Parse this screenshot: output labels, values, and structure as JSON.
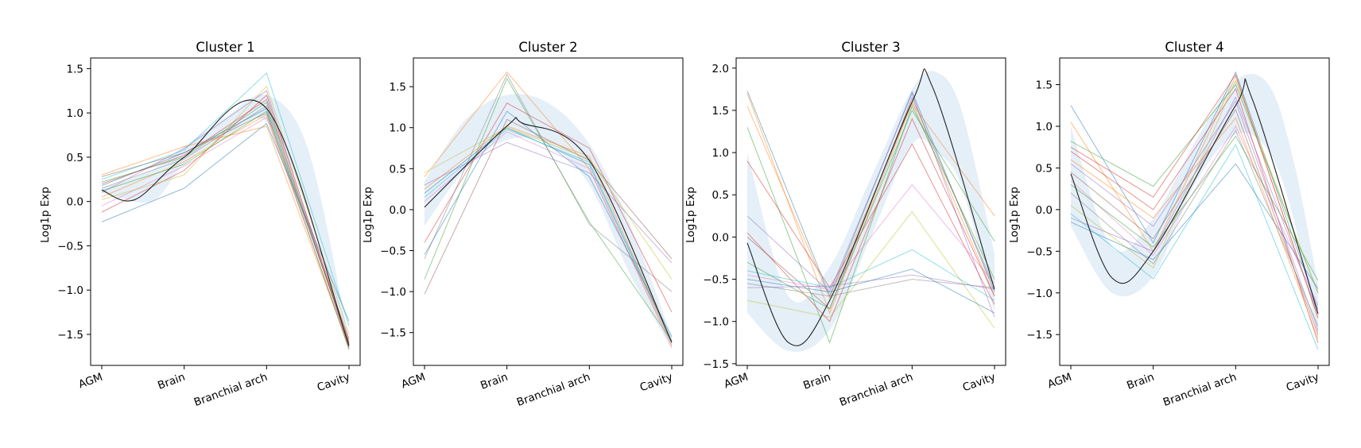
{
  "chart_data": [
    {
      "type": "line",
      "title": "Cluster 1",
      "ylabel": "Log1p Exp",
      "categories": [
        "AGM",
        "Brain",
        "Branchial arch",
        "Cavity"
      ],
      "ylim": [
        -1.85,
        1.62
      ],
      "yticks": [
        -1.5,
        -1.0,
        -0.5,
        0.0,
        0.5,
        1.0,
        1.5
      ],
      "ytick_labels": [
        "−1.5",
        "−1.0",
        "−0.5",
        "0.0",
        "0.5",
        "1.0",
        "1.5"
      ],
      "fit": [
        [
          0.0,
          0.13
        ],
        [
          0.4,
          0.02
        ],
        [
          1.0,
          0.5
        ],
        [
          2.0,
          1.05
        ],
        [
          3.0,
          -1.63
        ]
      ],
      "band": {
        "x": [
          0.0,
          0.6,
          1.0,
          1.5,
          2.0,
          2.5,
          3.0
        ],
        "upper": [
          0.15,
          0.35,
          0.62,
          0.95,
          1.2,
          0.6,
          -1.55
        ],
        "lower": [
          0.1,
          0.0,
          0.42,
          0.72,
          0.9,
          -0.1,
          -1.7
        ]
      },
      "series": [
        {
          "values": [
            0.18,
            0.55,
            1.05,
            -1.6
          ]
        },
        {
          "values": [
            0.05,
            0.45,
            0.98,
            -1.66
          ]
        },
        {
          "values": [
            0.22,
            0.5,
            1.12,
            -1.62
          ]
        },
        {
          "values": [
            -0.12,
            0.35,
            1.2,
            -1.58
          ]
        },
        {
          "values": [
            0.1,
            0.6,
            1.25,
            -1.65
          ]
        },
        {
          "values": [
            0.28,
            0.55,
            1.0,
            -1.55
          ]
        },
        {
          "values": [
            -0.05,
            0.4,
            0.95,
            -1.63
          ]
        },
        {
          "values": [
            0.15,
            0.48,
            1.08,
            -1.6
          ]
        },
        {
          "values": [
            0.02,
            0.3,
            1.3,
            -1.5
          ]
        },
        {
          "values": [
            0.25,
            0.58,
            1.45,
            -1.4
          ]
        },
        {
          "values": [
            -0.23,
            0.15,
            0.88,
            -1.35
          ]
        },
        {
          "values": [
            0.3,
            0.62,
            0.85,
            -1.64
          ]
        },
        {
          "values": [
            0.12,
            0.42,
            1.02,
            -1.67
          ]
        },
        {
          "values": [
            0.2,
            0.52,
            1.15,
            -1.61
          ]
        }
      ]
    },
    {
      "type": "line",
      "title": "Cluster 2",
      "ylabel": "Log1p Exp",
      "categories": [
        "AGM",
        "Brain",
        "Branchial arch",
        "Cavity"
      ],
      "ylim": [
        -1.9,
        1.85
      ],
      "yticks": [
        -1.5,
        -1.0,
        -0.5,
        0.0,
        0.5,
        1.0,
        1.5
      ],
      "ytick_labels": [
        "−1.5",
        "−1.0",
        "−0.5",
        "0.0",
        "0.5",
        "1.0",
        "1.5"
      ],
      "fit": [
        [
          0.0,
          0.03
        ],
        [
          1.0,
          1.02
        ],
        [
          1.2,
          1.05
        ],
        [
          2.0,
          0.6
        ],
        [
          3.0,
          -1.62
        ]
      ],
      "band": {
        "x": [
          0.0,
          0.5,
          1.0,
          1.5,
          2.0,
          2.5,
          3.0
        ],
        "upper": [
          0.35,
          1.1,
          1.4,
          1.3,
          0.8,
          -0.2,
          -1.55
        ],
        "lower": [
          -0.2,
          0.5,
          0.85,
          0.8,
          0.3,
          -0.8,
          -1.7
        ]
      },
      "series": [
        {
          "values": [
            0.2,
            1.0,
            0.55,
            -1.62
          ]
        },
        {
          "values": [
            0.4,
            1.68,
            0.5,
            -1.65
          ]
        },
        {
          "values": [
            -0.85,
            1.6,
            -0.15,
            -1.6
          ]
        },
        {
          "values": [
            -0.4,
            1.3,
            0.75,
            -1.25
          ]
        },
        {
          "values": [
            0.3,
            0.82,
            0.45,
            -0.65
          ]
        },
        {
          "values": [
            -1.03,
            1.1,
            0.6,
            -0.6
          ]
        },
        {
          "values": [
            0.1,
            0.95,
            0.5,
            -1.68
          ]
        },
        {
          "values": [
            -0.6,
            1.65,
            -0.18,
            -1.0
          ]
        },
        {
          "values": [
            0.45,
            1.0,
            0.62,
            -0.85
          ]
        },
        {
          "values": [
            0.15,
            0.98,
            0.58,
            -1.6
          ]
        },
        {
          "values": [
            -0.55,
            1.2,
            0.4,
            -1.55
          ]
        },
        {
          "values": [
            0.25,
            1.02,
            0.65,
            -1.62
          ]
        }
      ]
    },
    {
      "type": "line",
      "title": "Cluster 3",
      "ylabel": "Log1p Exp",
      "categories": [
        "AGM",
        "Brain",
        "Branchial arch",
        "Cavity"
      ],
      "ylim": [
        -1.52,
        2.12
      ],
      "yticks": [
        -1.5,
        -1.0,
        -0.5,
        0.0,
        0.5,
        1.0,
        1.5,
        2.0
      ],
      "ytick_labels": [
        "−1.5",
        "−1.0",
        "−0.5",
        "0.0",
        "0.5",
        "1.0",
        "1.5",
        "2.0"
      ],
      "fit": [
        [
          0.0,
          -0.07
        ],
        [
          0.5,
          -1.25
        ],
        [
          1.0,
          -0.75
        ],
        [
          2.0,
          1.6
        ],
        [
          2.25,
          1.77
        ],
        [
          3.0,
          -0.62
        ]
      ],
      "band": {
        "x": [
          0.0,
          0.5,
          1.0,
          1.5,
          2.0,
          2.3,
          2.6,
          3.0
        ],
        "upper": [
          1.0,
          -0.7,
          -0.35,
          0.7,
          1.75,
          1.95,
          1.5,
          -0.2
        ],
        "lower": [
          -0.9,
          -1.35,
          -1.1,
          0.0,
          1.1,
          1.0,
          0.6,
          -0.9
        ]
      },
      "series": [
        {
          "values": [
            1.73,
            -0.7,
            1.72,
            -0.65
          ]
        },
        {
          "values": [
            1.7,
            -0.9,
            1.6,
            -0.7
          ]
        },
        {
          "values": [
            1.3,
            -1.25,
            1.55,
            -0.5
          ]
        },
        {
          "values": [
            0.9,
            -0.6,
            1.1,
            -0.8
          ]
        },
        {
          "values": [
            0.25,
            -0.65,
            1.7,
            -0.95
          ]
        },
        {
          "values": [
            0.0,
            -0.85,
            1.65,
            -0.6
          ]
        },
        {
          "values": [
            -0.45,
            -0.62,
            0.62,
            -0.55
          ]
        },
        {
          "values": [
            -0.55,
            -0.7,
            -0.5,
            -0.6
          ]
        },
        {
          "values": [
            -0.75,
            -0.95,
            0.3,
            -1.08
          ]
        },
        {
          "values": [
            -0.4,
            -0.6,
            -0.15,
            -0.75
          ]
        },
        {
          "values": [
            -0.5,
            -0.65,
            -0.38,
            -0.9
          ]
        },
        {
          "values": [
            1.55,
            -0.72,
            1.58,
            0.25
          ]
        },
        {
          "values": [
            -0.3,
            -0.85,
            1.5,
            -0.05
          ]
        },
        {
          "values": [
            0.05,
            -1.0,
            1.4,
            -0.7
          ]
        },
        {
          "values": [
            -0.6,
            -0.58,
            -0.45,
            -0.62
          ]
        }
      ]
    },
    {
      "type": "line",
      "title": "Cluster 4",
      "ylabel": "Log1p Exp",
      "categories": [
        "AGM",
        "Brain",
        "Branchial arch",
        "Cavity"
      ],
      "ylim": [
        -1.87,
        1.82
      ],
      "yticks": [
        -1.5,
        -1.0,
        -0.5,
        0.0,
        0.5,
        1.0,
        1.5
      ],
      "ytick_labels": [
        "−1.5",
        "−1.0",
        "−0.5",
        "0.0",
        "0.5",
        "1.0",
        "1.5"
      ],
      "fit": [
        [
          0.0,
          0.43
        ],
        [
          0.5,
          -0.82
        ],
        [
          1.0,
          -0.5
        ],
        [
          2.0,
          1.25
        ],
        [
          2.2,
          1.33
        ],
        [
          3.0,
          -1.25
        ]
      ],
      "band": {
        "x": [
          0.0,
          0.5,
          1.0,
          1.5,
          2.0,
          2.4,
          2.7,
          3.0
        ],
        "upper": [
          1.0,
          -0.45,
          -0.1,
          0.8,
          1.55,
          1.5,
          0.6,
          -0.9
        ],
        "lower": [
          -0.2,
          -1.0,
          -0.8,
          0.3,
          0.9,
          0.7,
          -0.1,
          -1.55
        ]
      },
      "series": [
        {
          "values": [
            1.25,
            -0.4,
            1.65,
            -1.2
          ]
        },
        {
          "values": [
            1.05,
            -0.5,
            1.6,
            -1.3
          ]
        },
        {
          "values": [
            0.82,
            0.28,
            1.5,
            -1.0
          ]
        },
        {
          "values": [
            0.7,
            0.0,
            1.45,
            -1.6
          ]
        },
        {
          "values": [
            0.55,
            -0.2,
            1.3,
            -1.45
          ]
        },
        {
          "values": [
            0.45,
            -0.35,
            1.2,
            -1.5
          ]
        },
        {
          "values": [
            0.35,
            -0.55,
            1.0,
            -1.15
          ]
        },
        {
          "values": [
            0.2,
            -0.65,
            0.95,
            -1.4
          ]
        },
        {
          "values": [
            0.05,
            -0.7,
            1.55,
            -1.0
          ]
        },
        {
          "values": [
            -0.05,
            -0.83,
            0.78,
            -1.68
          ]
        },
        {
          "values": [
            -0.15,
            -0.6,
            0.55,
            -0.95
          ]
        },
        {
          "values": [
            0.6,
            -0.1,
            1.1,
            -1.55
          ]
        },
        {
          "values": [
            0.3,
            -0.45,
            0.88,
            -0.85
          ]
        },
        {
          "values": [
            0.75,
            0.15,
            1.62,
            -1.3
          ]
        },
        {
          "values": [
            -0.1,
            -0.5,
            1.35,
            -1.25
          ]
        }
      ]
    }
  ]
}
